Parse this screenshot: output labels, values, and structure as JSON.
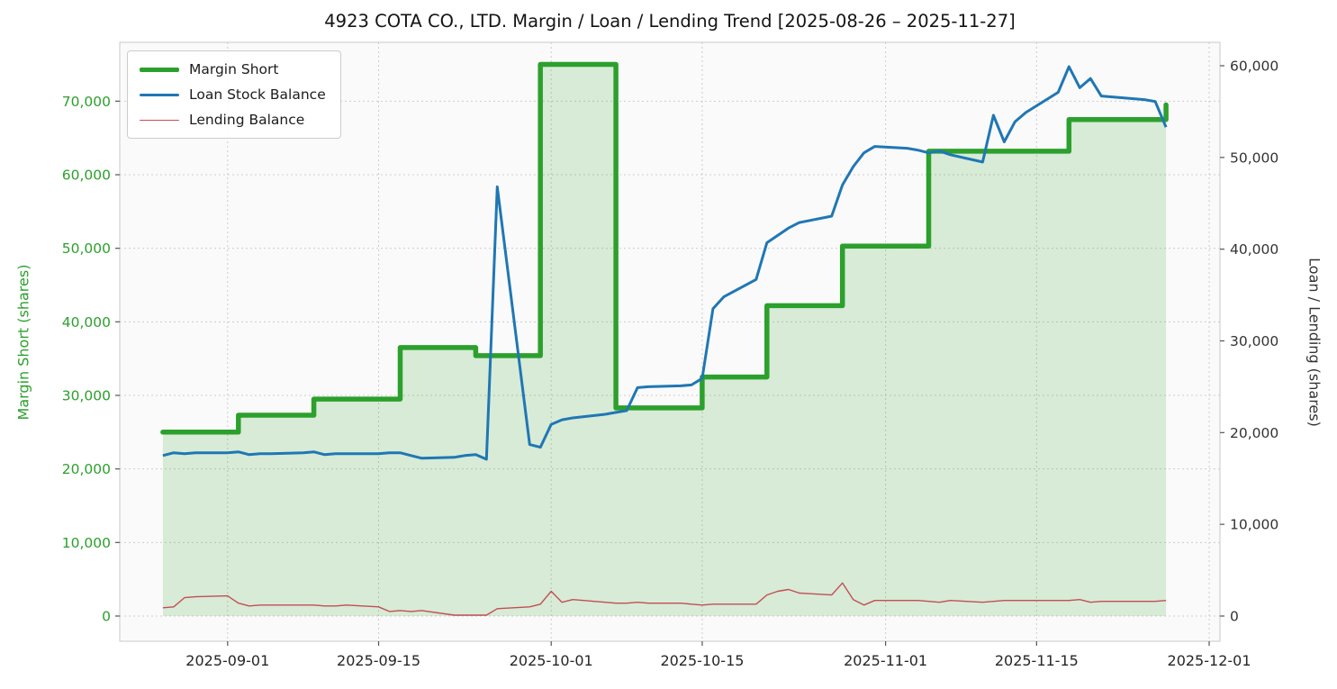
{
  "chart_data": {
    "type": "line",
    "title": "4923 COTA CO., LTD. Margin / Loan / Lending Trend [2025-08-26 – 2025-11-27]",
    "ylabel_left": "Margin Short (shares)",
    "ylabel_right": "Loan / Lending (shares)",
    "grid": true,
    "legend_position": "upper left",
    "x_range": [
      "2025-08-22",
      "2025-12-02"
    ],
    "ylim_left": [
      -3430,
      78000
    ],
    "ylim_right": [
      -2750,
      62550
    ],
    "x_ticks": [
      {
        "date": "2025-09-01",
        "label": "2025-09-01"
      },
      {
        "date": "2025-09-15",
        "label": "2025-09-15"
      },
      {
        "date": "2025-10-01",
        "label": "2025-10-01"
      },
      {
        "date": "2025-10-15",
        "label": "2025-10-15"
      },
      {
        "date": "2025-11-01",
        "label": "2025-11-01"
      },
      {
        "date": "2025-11-15",
        "label": "2025-11-15"
      },
      {
        "date": "2025-12-01",
        "label": "2025-12-01"
      }
    ],
    "y_left_ticks": [
      {
        "value": 0,
        "label": "0"
      },
      {
        "value": 10000,
        "label": "10,000"
      },
      {
        "value": 20000,
        "label": "20,000"
      },
      {
        "value": 30000,
        "label": "30,000"
      },
      {
        "value": 40000,
        "label": "40,000"
      },
      {
        "value": 50000,
        "label": "50,000"
      },
      {
        "value": 60000,
        "label": "60,000"
      },
      {
        "value": 70000,
        "label": "70,000"
      }
    ],
    "y_right_ticks": [
      {
        "value": 0,
        "label": "0"
      },
      {
        "value": 10000,
        "label": "10,000"
      },
      {
        "value": 20000,
        "label": "20,000"
      },
      {
        "value": 30000,
        "label": "30,000"
      },
      {
        "value": 40000,
        "label": "40,000"
      },
      {
        "value": 50000,
        "label": "50,000"
      },
      {
        "value": 60000,
        "label": "60,000"
      }
    ],
    "dates": [
      "2025-08-26",
      "2025-08-27",
      "2025-08-28",
      "2025-08-29",
      "2025-09-01",
      "2025-09-02",
      "2025-09-03",
      "2025-09-04",
      "2025-09-05",
      "2025-09-08",
      "2025-09-09",
      "2025-09-10",
      "2025-09-11",
      "2025-09-12",
      "2025-09-15",
      "2025-09-16",
      "2025-09-17",
      "2025-09-18",
      "2025-09-19",
      "2025-09-22",
      "2025-09-23",
      "2025-09-24",
      "2025-09-25",
      "2025-09-26",
      "2025-09-29",
      "2025-09-30",
      "2025-10-01",
      "2025-10-02",
      "2025-10-03",
      "2025-10-06",
      "2025-10-07",
      "2025-10-08",
      "2025-10-09",
      "2025-10-10",
      "2025-10-13",
      "2025-10-14",
      "2025-10-15",
      "2025-10-16",
      "2025-10-17",
      "2025-10-20",
      "2025-10-21",
      "2025-10-22",
      "2025-10-23",
      "2025-10-24",
      "2025-10-27",
      "2025-10-28",
      "2025-10-29",
      "2025-10-30",
      "2025-10-31",
      "2025-11-03",
      "2025-11-04",
      "2025-11-05",
      "2025-11-06",
      "2025-11-07",
      "2025-11-10",
      "2025-11-11",
      "2025-11-12",
      "2025-11-13",
      "2025-11-14",
      "2025-11-17",
      "2025-11-18",
      "2025-11-19",
      "2025-11-20",
      "2025-11-21",
      "2025-11-24",
      "2025-11-25",
      "2025-11-26",
      "2025-11-27"
    ],
    "series": [
      {
        "name": "Margin Short",
        "axis": "left",
        "color": "#2ca02c",
        "fill": "rgba(44,160,44,0.17)",
        "width": 5.5,
        "style": "step",
        "values": [
          25000,
          25000,
          25000,
          25000,
          25000,
          27300,
          27300,
          27300,
          27300,
          27300,
          29500,
          29500,
          29500,
          29500,
          29500,
          29500,
          36500,
          36500,
          36500,
          36500,
          36500,
          35400,
          35400,
          35400,
          35400,
          75000,
          75000,
          75000,
          75000,
          75000,
          28300,
          28300,
          28300,
          28300,
          28300,
          28300,
          32500,
          32500,
          32500,
          32500,
          42200,
          42200,
          42200,
          42200,
          42200,
          50300,
          50300,
          50300,
          50300,
          50300,
          50300,
          63200,
          63200,
          63200,
          63200,
          63200,
          63200,
          63200,
          63200,
          63200,
          67500,
          67500,
          67500,
          67500,
          67500,
          67500,
          67500,
          69500
        ]
      },
      {
        "name": "Loan Stock Balance",
        "axis": "right",
        "color": "#1f77b4",
        "width": 3,
        "style": "line",
        "values": [
          17500,
          17800,
          17700,
          17800,
          17800,
          17900,
          17600,
          17700,
          17700,
          17800,
          17900,
          17600,
          17700,
          17700,
          17700,
          17800,
          17800,
          17500,
          17200,
          17300,
          17500,
          17600,
          17100,
          46800,
          18700,
          18400,
          20900,
          21400,
          21600,
          22000,
          22200,
          22400,
          24900,
          25000,
          25100,
          25200,
          25900,
          33500,
          34800,
          36700,
          40700,
          41500,
          42300,
          42900,
          43600,
          47000,
          49000,
          50500,
          51200,
          51000,
          50800,
          50500,
          50700,
          50300,
          49500,
          54600,
          51700,
          53900,
          54900,
          57100,
          59900,
          57600,
          58600,
          56700,
          56400,
          56300,
          56100,
          53300
        ]
      },
      {
        "name": "Lending Balance",
        "axis": "right",
        "color": "#c44e52",
        "width": 1.4,
        "style": "line",
        "values": [
          900,
          1000,
          2000,
          2100,
          2200,
          1400,
          1100,
          1200,
          1200,
          1200,
          1200,
          1100,
          1100,
          1200,
          1000,
          500,
          600,
          500,
          600,
          100,
          100,
          100,
          100,
          800,
          1000,
          1300,
          2700,
          1500,
          1800,
          1500,
          1400,
          1400,
          1500,
          1400,
          1400,
          1300,
          1200,
          1300,
          1300,
          1300,
          2300,
          2700,
          2900,
          2500,
          2300,
          3600,
          1800,
          1200,
          1700,
          1700,
          1700,
          1600,
          1500,
          1700,
          1500,
          1600,
          1700,
          1700,
          1700,
          1700,
          1700,
          1800,
          1500,
          1600,
          1600,
          1600,
          1600,
          1700
        ]
      }
    ],
    "legend": [
      {
        "id": "margin-short",
        "label": "Margin Short",
        "color": "#2ca02c",
        "line_width": 5
      },
      {
        "id": "loan-stock-balance",
        "label": "Loan Stock Balance",
        "color": "#1f77b4",
        "line_width": 3
      },
      {
        "id": "lending-balance",
        "label": "Lending Balance",
        "color": "#c44e52",
        "line_width": 1.5
      }
    ]
  }
}
